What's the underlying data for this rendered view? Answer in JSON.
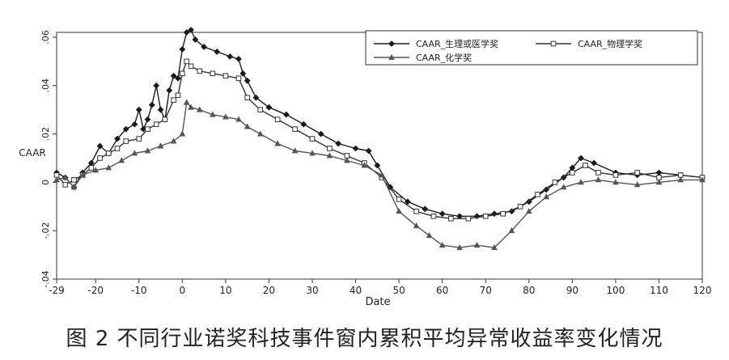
{
  "caption": "图 2 不同行业诺奖科技事件窗内累积平均异常收益率变化情况",
  "chart_data": {
    "type": "line",
    "xlabel": "Date",
    "ylabel": "CAAR",
    "xlim": [
      -29,
      120
    ],
    "ylim": [
      -0.04,
      0.062
    ],
    "x_ticks": [
      -29,
      -20,
      -10,
      0,
      10,
      20,
      30,
      40,
      50,
      60,
      70,
      80,
      90,
      100,
      110,
      120
    ],
    "x_tick_labels": [
      "-29",
      "-20",
      "-10",
      "0",
      "10",
      "20",
      "30",
      "40",
      "50",
      "60",
      "70",
      "80",
      "90",
      "100",
      "110",
      "120"
    ],
    "y_ticks": [
      -0.04,
      -0.02,
      0,
      0.02,
      0.04,
      0.06
    ],
    "y_tick_labels": [
      "-.04",
      "-.02",
      "0",
      ".02",
      ".04",
      ".06"
    ],
    "legend_position": "top-right",
    "series": [
      {
        "name": "CAAR_生理或医学奖",
        "color": "#1a1a1a",
        "marker": "filled-diamond",
        "points": [
          [
            -29,
            0.004
          ],
          [
            -27,
            0.002
          ],
          [
            -25,
            -0.002
          ],
          [
            -23,
            0.004
          ],
          [
            -21,
            0.008
          ],
          [
            -19,
            0.015
          ],
          [
            -17,
            0.012
          ],
          [
            -15,
            0.018
          ],
          [
            -13,
            0.022
          ],
          [
            -11,
            0.024
          ],
          [
            -10,
            0.03
          ],
          [
            -9,
            0.022
          ],
          [
            -8,
            0.026
          ],
          [
            -7,
            0.032
          ],
          [
            -6,
            0.04
          ],
          [
            -5,
            0.03
          ],
          [
            -4,
            0.026
          ],
          [
            -3,
            0.038
          ],
          [
            -2,
            0.044
          ],
          [
            -1,
            0.043
          ],
          [
            0,
            0.055
          ],
          [
            1,
            0.062
          ],
          [
            2,
            0.063
          ],
          [
            3,
            0.059
          ],
          [
            5,
            0.056
          ],
          [
            8,
            0.054
          ],
          [
            11,
            0.052
          ],
          [
            13,
            0.051
          ],
          [
            14,
            0.045
          ],
          [
            15,
            0.042
          ],
          [
            17,
            0.035
          ],
          [
            20,
            0.031
          ],
          [
            24,
            0.028
          ],
          [
            28,
            0.024
          ],
          [
            32,
            0.02
          ],
          [
            36,
            0.016
          ],
          [
            40,
            0.014
          ],
          [
            43,
            0.013
          ],
          [
            45,
            0.007
          ],
          [
            48,
            -0.002
          ],
          [
            52,
            -0.008
          ],
          [
            56,
            -0.011
          ],
          [
            60,
            -0.013
          ],
          [
            64,
            -0.014
          ],
          [
            68,
            -0.014
          ],
          [
            72,
            -0.013
          ],
          [
            76,
            -0.012
          ],
          [
            80,
            -0.008
          ],
          [
            84,
            -0.003
          ],
          [
            88,
            0.002
          ],
          [
            90,
            0.006
          ],
          [
            92,
            0.01
          ],
          [
            95,
            0.008
          ],
          [
            100,
            0.004
          ],
          [
            105,
            0.003
          ],
          [
            110,
            0.004
          ],
          [
            115,
            0.003
          ],
          [
            120,
            0.002
          ]
        ]
      },
      {
        "name": "CAAR_物理学奖",
        "color": "#333333",
        "marker": "hollow-square",
        "points": [
          [
            -29,
            0.003
          ],
          [
            -27,
            -0.001
          ],
          [
            -25,
            0.001
          ],
          [
            -23,
            0.003
          ],
          [
            -21,
            0.006
          ],
          [
            -19,
            0.01
          ],
          [
            -17,
            0.012
          ],
          [
            -15,
            0.014
          ],
          [
            -13,
            0.017
          ],
          [
            -10,
            0.018
          ],
          [
            -8,
            0.022
          ],
          [
            -6,
            0.024
          ],
          [
            -4,
            0.026
          ],
          [
            -2,
            0.034
          ],
          [
            -1,
            0.036
          ],
          [
            0,
            0.045
          ],
          [
            1,
            0.05
          ],
          [
            2,
            0.048
          ],
          [
            4,
            0.046
          ],
          [
            7,
            0.045
          ],
          [
            10,
            0.044
          ],
          [
            13,
            0.043
          ],
          [
            15,
            0.035
          ],
          [
            18,
            0.03
          ],
          [
            22,
            0.026
          ],
          [
            26,
            0.022
          ],
          [
            30,
            0.018
          ],
          [
            34,
            0.014
          ],
          [
            38,
            0.011
          ],
          [
            42,
            0.008
          ],
          [
            46,
            0.002
          ],
          [
            50,
            -0.007
          ],
          [
            54,
            -0.012
          ],
          [
            58,
            -0.014
          ],
          [
            62,
            -0.015
          ],
          [
            66,
            -0.015
          ],
          [
            70,
            -0.014
          ],
          [
            74,
            -0.013
          ],
          [
            78,
            -0.01
          ],
          [
            82,
            -0.005
          ],
          [
            86,
            0.0
          ],
          [
            90,
            0.004
          ],
          [
            93,
            0.007
          ],
          [
            96,
            0.004
          ],
          [
            100,
            0.003
          ],
          [
            105,
            0.004
          ],
          [
            110,
            0.002
          ],
          [
            115,
            0.003
          ],
          [
            120,
            0.002
          ]
        ]
      },
      {
        "name": "CAAR_化学奖",
        "color": "#555555",
        "marker": "triangle",
        "points": [
          [
            -29,
            0.001
          ],
          [
            -27,
            0.002
          ],
          [
            -25,
            -0.002
          ],
          [
            -23,
            0.003
          ],
          [
            -20,
            0.005
          ],
          [
            -17,
            0.006
          ],
          [
            -14,
            0.009
          ],
          [
            -11,
            0.012
          ],
          [
            -8,
            0.013
          ],
          [
            -5,
            0.015
          ],
          [
            -2,
            0.017
          ],
          [
            0,
            0.02
          ],
          [
            1,
            0.033
          ],
          [
            2,
            0.031
          ],
          [
            4,
            0.03
          ],
          [
            7,
            0.028
          ],
          [
            10,
            0.027
          ],
          [
            13,
            0.026
          ],
          [
            15,
            0.023
          ],
          [
            18,
            0.02
          ],
          [
            22,
            0.016
          ],
          [
            26,
            0.013
          ],
          [
            30,
            0.012
          ],
          [
            34,
            0.011
          ],
          [
            38,
            0.009
          ],
          [
            42,
            0.007
          ],
          [
            46,
            0.003
          ],
          [
            50,
            -0.012
          ],
          [
            54,
            -0.018
          ],
          [
            57,
            -0.022
          ],
          [
            60,
            -0.026
          ],
          [
            64,
            -0.027
          ],
          [
            68,
            -0.026
          ],
          [
            72,
            -0.027
          ],
          [
            76,
            -0.02
          ],
          [
            80,
            -0.012
          ],
          [
            84,
            -0.006
          ],
          [
            88,
            -0.002
          ],
          [
            92,
            0.0
          ],
          [
            96,
            0.001
          ],
          [
            100,
            0.0
          ],
          [
            105,
            -0.001
          ],
          [
            110,
            0.0
          ],
          [
            115,
            0.001
          ],
          [
            120,
            0.001
          ]
        ]
      }
    ]
  }
}
